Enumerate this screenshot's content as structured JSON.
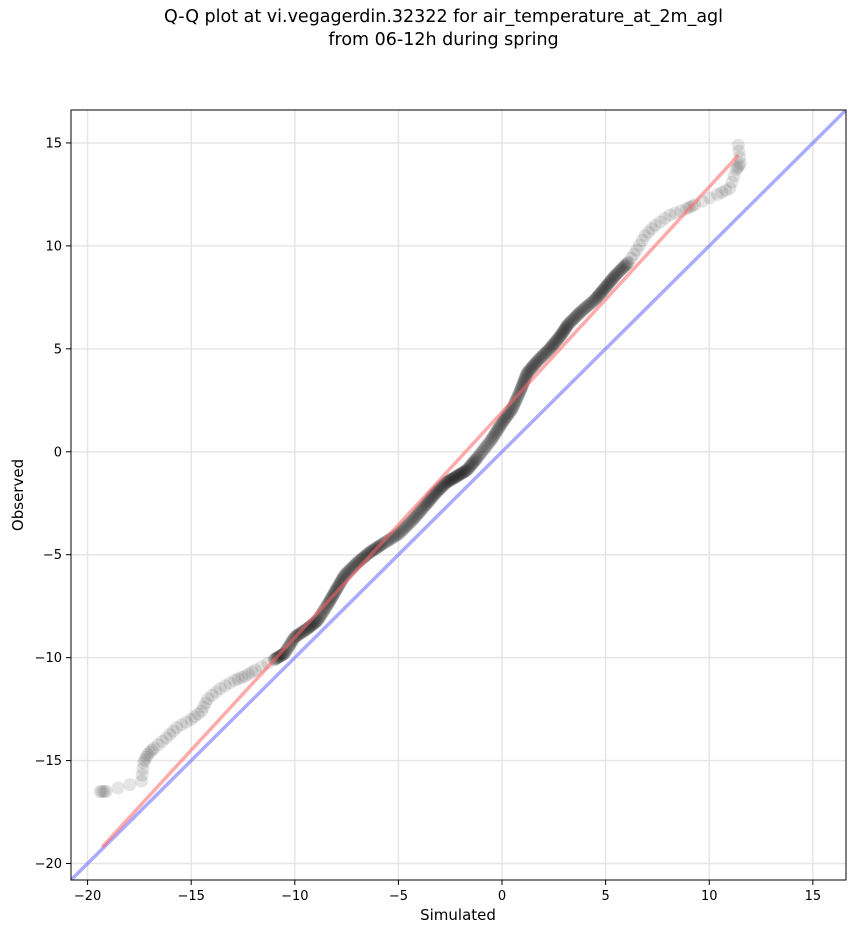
{
  "title_line1": "Q-Q plot at vi.vegagerdin.32322 for air_temperature_at_2m_agl",
  "title_line2": "from 06-12h during spring",
  "chart_data": {
    "type": "scatter",
    "xlabel": "Simulated",
    "ylabel": "Observed",
    "xlim": [
      -20.8,
      16.6
    ],
    "ylim": [
      -20.8,
      16.6
    ],
    "xticks": [
      -20,
      -15,
      -10,
      -5,
      0,
      5,
      10,
      15
    ],
    "yticks": [
      -20,
      -15,
      -10,
      -5,
      0,
      5,
      10,
      15
    ],
    "xtick_labels": [
      "−20",
      "−15",
      "−10",
      "−5",
      "0",
      "5",
      "10",
      "15"
    ],
    "ytick_labels": [
      "−20",
      "−15",
      "−10",
      "−5",
      "0",
      "5",
      "10",
      "15"
    ],
    "grid": true,
    "colors": {
      "points": "#000000",
      "fit_line": "#ff6666",
      "identity_line": "#6666ff",
      "grid": "#e6e6e6"
    },
    "quantile_path": [
      [
        -19.4,
        -16.5
      ],
      [
        -19.1,
        -16.5
      ],
      [
        -17.4,
        -16.0
      ],
      [
        -17.3,
        -15.1
      ],
      [
        -17.1,
        -14.7
      ],
      [
        -16.8,
        -14.4
      ],
      [
        -16.2,
        -13.9
      ],
      [
        -15.7,
        -13.4
      ],
      [
        -15.0,
        -13.0
      ],
      [
        -14.5,
        -12.6
      ],
      [
        -14.2,
        -12.0
      ],
      [
        -13.6,
        -11.5
      ],
      [
        -12.9,
        -11.1
      ],
      [
        -12.4,
        -10.9
      ],
      [
        -11.9,
        -10.6
      ],
      [
        -11.0,
        -10.1
      ],
      [
        -10.5,
        -9.8
      ],
      [
        -10.0,
        -9.0
      ],
      [
        -9.4,
        -8.6
      ],
      [
        -8.9,
        -8.2
      ],
      [
        -8.4,
        -7.4
      ],
      [
        -8.0,
        -6.7
      ],
      [
        -7.6,
        -6.0
      ],
      [
        -7.0,
        -5.4
      ],
      [
        -6.4,
        -4.9
      ],
      [
        -5.8,
        -4.5
      ],
      [
        -5.0,
        -4.0
      ],
      [
        -4.3,
        -3.3
      ],
      [
        -3.7,
        -2.6
      ],
      [
        -3.2,
        -2.0
      ],
      [
        -2.7,
        -1.5
      ],
      [
        -2.2,
        -1.2
      ],
      [
        -1.7,
        -0.9
      ],
      [
        -1.2,
        -0.3
      ],
      [
        -0.5,
        0.6
      ],
      [
        0.0,
        1.4
      ],
      [
        0.5,
        2.1
      ],
      [
        0.9,
        3.0
      ],
      [
        1.2,
        3.8
      ],
      [
        1.7,
        4.4
      ],
      [
        2.3,
        5.0
      ],
      [
        2.8,
        5.6
      ],
      [
        3.2,
        6.2
      ],
      [
        3.8,
        6.8
      ],
      [
        4.5,
        7.4
      ],
      [
        5.0,
        8.0
      ],
      [
        5.5,
        8.6
      ],
      [
        6.1,
        9.2
      ],
      [
        6.5,
        9.8
      ],
      [
        6.9,
        10.5
      ],
      [
        7.4,
        11.0
      ],
      [
        8.1,
        11.5
      ],
      [
        8.9,
        11.8
      ],
      [
        9.3,
        12.0
      ],
      [
        10.4,
        12.5
      ],
      [
        11.0,
        12.8
      ],
      [
        11.3,
        13.7
      ],
      [
        11.5,
        14.0
      ],
      [
        11.4,
        14.9
      ]
    ],
    "fit_line": [
      [
        -19.3,
        -19.2
      ],
      [
        11.4,
        14.4
      ]
    ],
    "identity_line": [
      [
        -20.8,
        -20.8
      ],
      [
        16.6,
        16.6
      ]
    ]
  }
}
